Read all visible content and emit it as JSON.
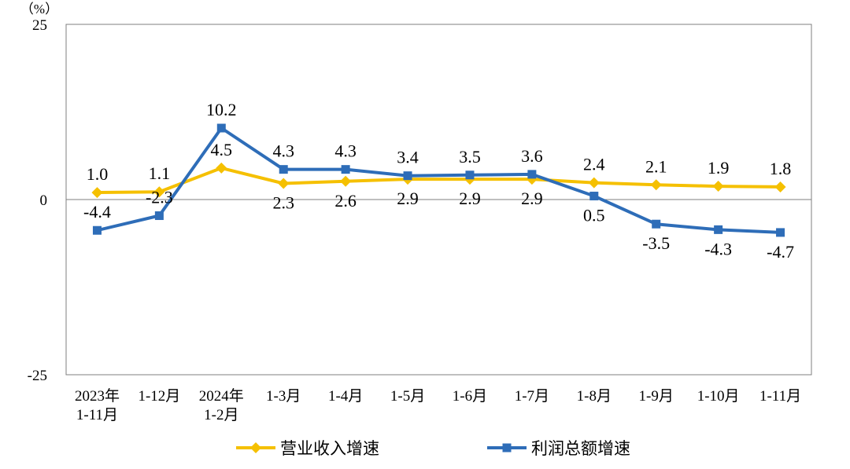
{
  "chart_data": {
    "type": "line",
    "unit_label": "（%）",
    "categories": [
      [
        "2023年",
        "1-11月"
      ],
      [
        "1-12月"
      ],
      [
        "2024年",
        "1-2月"
      ],
      [
        "1-3月"
      ],
      [
        "1-4月"
      ],
      [
        "1-5月"
      ],
      [
        "1-6月"
      ],
      [
        "1-7月"
      ],
      [
        "1-8月"
      ],
      [
        "1-9月"
      ],
      [
        "1-10月"
      ],
      [
        "1-11月"
      ]
    ],
    "ylim": [
      -25,
      25
    ],
    "yticks": [
      25,
      0,
      -25
    ],
    "grid": false,
    "legend_position": "bottom",
    "series": [
      {
        "name": "营业收入增速",
        "color": "#F5C000",
        "marker": "diamond",
        "values": [
          1.0,
          1.1,
          4.5,
          2.3,
          2.6,
          2.9,
          2.9,
          2.9,
          2.4,
          2.1,
          1.9,
          1.8
        ],
        "labels": [
          "1.0",
          "1.1",
          "4.5",
          "2.3",
          "2.6",
          "2.9",
          "2.9",
          "2.9",
          "2.4",
          "2.1",
          "1.9",
          "1.8"
        ],
        "label_side": [
          "above",
          "above",
          "above",
          "below",
          "below",
          "below",
          "below",
          "below",
          "above",
          "above",
          "above",
          "above"
        ]
      },
      {
        "name": "利润总额增速",
        "color": "#2E6DB8",
        "marker": "square",
        "values": [
          -4.4,
          -2.3,
          10.2,
          4.3,
          4.3,
          3.4,
          3.5,
          3.6,
          0.5,
          -3.5,
          -4.3,
          -4.7
        ],
        "labels": [
          "-4.4",
          "-2.3",
          "10.2",
          "4.3",
          "4.3",
          "3.4",
          "3.5",
          "3.6",
          "0.5",
          "-3.5",
          "-4.3",
          "-4.7"
        ],
        "label_side": [
          "above",
          "above",
          "above",
          "above",
          "above",
          "above",
          "above",
          "above",
          "below",
          "below",
          "below",
          "below"
        ]
      }
    ]
  }
}
